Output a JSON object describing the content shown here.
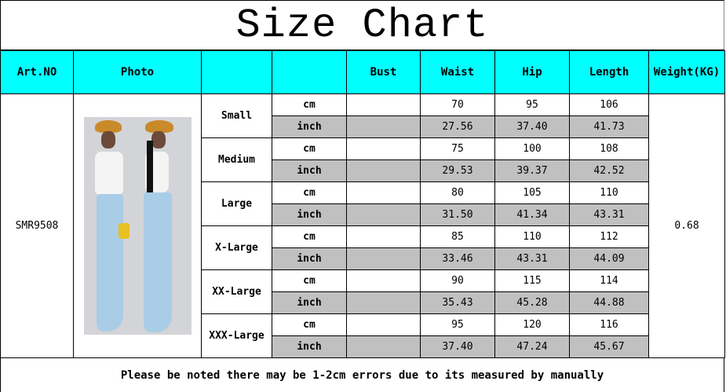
{
  "title": "Size Chart",
  "headers": [
    "Art.NO",
    "Photo",
    "",
    "",
    "Bust",
    "Waist",
    "Hip",
    "Length",
    "Weight(KG)"
  ],
  "art_no": "SMR9508",
  "weight": "0.68",
  "unit_labels": {
    "cm": "cm",
    "inch": "inch"
  },
  "sizes": [
    {
      "name": "Small",
      "cm": {
        "bust": "",
        "waist": "70",
        "hip": "95",
        "length": "106"
      },
      "inch": {
        "bust": "",
        "waist": "27.56",
        "hip": "37.40",
        "length": "41.73"
      }
    },
    {
      "name": "Medium",
      "cm": {
        "bust": "",
        "waist": "75",
        "hip": "100",
        "length": "108"
      },
      "inch": {
        "bust": "",
        "waist": "29.53",
        "hip": "39.37",
        "length": "42.52"
      }
    },
    {
      "name": "Large",
      "cm": {
        "bust": "",
        "waist": "80",
        "hip": "105",
        "length": "110"
      },
      "inch": {
        "bust": "",
        "waist": "31.50",
        "hip": "41.34",
        "length": "43.31"
      }
    },
    {
      "name": "X-Large",
      "cm": {
        "bust": "",
        "waist": "85",
        "hip": "110",
        "length": "112"
      },
      "inch": {
        "bust": "",
        "waist": "33.46",
        "hip": "43.31",
        "length": "44.09"
      }
    },
    {
      "name": "XX-Large",
      "cm": {
        "bust": "",
        "waist": "90",
        "hip": "115",
        "length": "114"
      },
      "inch": {
        "bust": "",
        "waist": "35.43",
        "hip": "45.28",
        "length": "44.88"
      }
    },
    {
      "name": "XXX-Large",
      "cm": {
        "bust": "",
        "waist": "95",
        "hip": "120",
        "length": "116"
      },
      "inch": {
        "bust": "",
        "waist": "37.40",
        "hip": "47.24",
        "length": "45.67"
      }
    }
  ],
  "footer": "Please be noted there may be 1-2cm errors due to its measured by manually",
  "colors": {
    "header_bg": "#00ffff",
    "inch_row_bg": "#c0c0c0"
  }
}
